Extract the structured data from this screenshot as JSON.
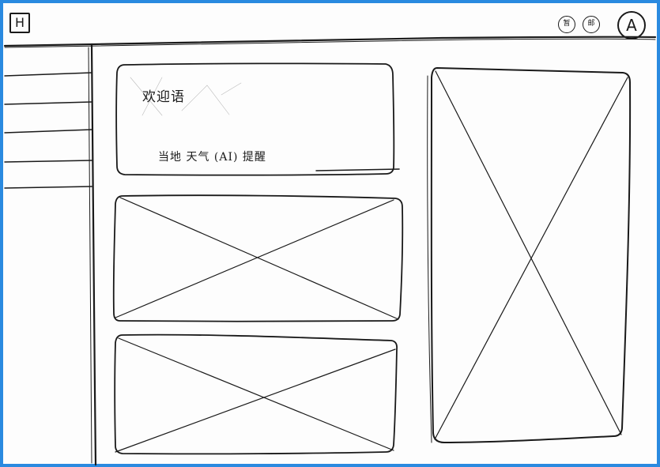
{
  "header": {
    "logo_label": "H",
    "icon_one_label": "暂",
    "icon_two_label": "邮",
    "avatar_label": "A"
  },
  "sidebar": {
    "items": [
      "",
      "",
      "",
      "",
      ""
    ]
  },
  "welcome_card": {
    "title": "欢迎语",
    "info_line": "当地 天气 (AI) 提醒"
  },
  "colors": {
    "frame": "#2a8ae0",
    "ink": "#1a1a1a",
    "paper": "#fdfdfd"
  }
}
